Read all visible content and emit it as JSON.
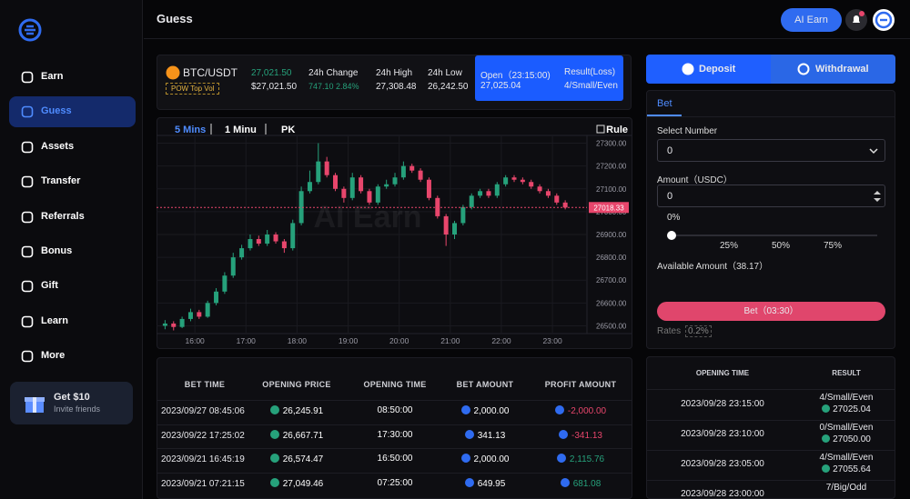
{
  "sidebar": {
    "menu": [
      "Earn",
      "Guess",
      "Assets",
      "Transfer",
      "Referrals",
      "Bonus",
      "Gift",
      "Learn",
      "More"
    ],
    "promo_title": "Get $10",
    "promo_subtitle": "Invite friends"
  },
  "header": {
    "title": "Guess",
    "button": "AI Earn"
  },
  "ticker": {
    "pair": "BTC/USDT",
    "tag": "POW Top Vol",
    "price": "27,021.50",
    "price_usd": "$27,021.50",
    "change_label": "24h Change",
    "change": "747.10 2.84%",
    "high_label": "24h High",
    "high": "27,308.48",
    "low_label": "24h Low",
    "low": "26,242.50",
    "open_label": "Open（23:15:00)",
    "open": "27,025.04",
    "result_label": "Result(Loss)",
    "result": "4/Small/Even"
  },
  "chart_data": {
    "type": "candlestick",
    "tabs": [
      "5 Mins",
      "1 Minu",
      "PK"
    ],
    "rule": "Rule",
    "watermark": "AI Earn",
    "candles": [
      [
        26500,
        26525,
        26485,
        26510
      ],
      [
        26510,
        26520,
        26480,
        26495
      ],
      [
        26495,
        26540,
        26490,
        26530
      ],
      [
        26530,
        26575,
        26520,
        26560
      ],
      [
        26560,
        26570,
        26530,
        26540
      ],
      [
        26540,
        26610,
        26535,
        26600
      ],
      [
        26600,
        26665,
        26590,
        26650
      ],
      [
        26650,
        26735,
        26640,
        26720
      ],
      [
        26720,
        26820,
        26710,
        26800
      ],
      [
        26800,
        26855,
        26790,
        26840
      ],
      [
        26840,
        26900,
        26830,
        26880
      ],
      [
        26880,
        26895,
        26850,
        26860
      ],
      [
        26860,
        26920,
        26850,
        26900
      ],
      [
        26900,
        26910,
        26860,
        26870
      ],
      [
        26870,
        26880,
        26820,
        26840
      ],
      [
        26840,
        26965,
        26830,
        26950
      ],
      [
        26950,
        27110,
        26940,
        27090
      ],
      [
        27090,
        27180,
        27080,
        27130
      ],
      [
        27130,
        27300,
        27120,
        27220
      ],
      [
        27220,
        27240,
        27150,
        27160
      ],
      [
        27160,
        27170,
        27090,
        27100
      ],
      [
        27100,
        27110,
        27040,
        27060
      ],
      [
        27060,
        27170,
        27050,
        27150
      ],
      [
        27150,
        27160,
        27080,
        27090
      ],
      [
        27090,
        27100,
        27030,
        27040
      ],
      [
        27040,
        27120,
        27030,
        27110
      ],
      [
        27110,
        27140,
        27100,
        27120
      ],
      [
        27120,
        27170,
        27110,
        27150
      ],
      [
        27150,
        27220,
        27140,
        27200
      ],
      [
        27200,
        27210,
        27170,
        27180
      ],
      [
        27180,
        27190,
        27130,
        27140
      ],
      [
        27140,
        27150,
        27050,
        27060
      ],
      [
        27060,
        27070,
        26970,
        26980
      ],
      [
        26980,
        26990,
        26850,
        26900
      ],
      [
        26900,
        26960,
        26880,
        26950
      ],
      [
        26950,
        27030,
        26940,
        27020
      ],
      [
        27020,
        27080,
        27010,
        27070
      ],
      [
        27070,
        27100,
        27060,
        27090
      ],
      [
        27090,
        27100,
        27060,
        27070
      ],
      [
        27070,
        27130,
        27060,
        27120
      ],
      [
        27120,
        27160,
        27110,
        27150
      ],
      [
        27150,
        27160,
        27130,
        27140
      ],
      [
        27140,
        27150,
        27120,
        27130
      ],
      [
        27130,
        27140,
        27100,
        27110
      ],
      [
        27110,
        27120,
        27080,
        27090
      ],
      [
        27090,
        27100,
        27060,
        27070
      ],
      [
        27070,
        27080,
        27030,
        27040
      ],
      [
        27040,
        27050,
        27010,
        27018
      ]
    ],
    "xlim": [
      -1.25,
      48
    ],
    "xticks": [
      {
        "value": 3.5,
        "label": "16:00"
      },
      {
        "value": 9.5,
        "label": "17:00"
      },
      {
        "value": 15.5,
        "label": "18:00"
      },
      {
        "value": 21.5,
        "label": "19:00"
      },
      {
        "value": 27.5,
        "label": "20:00"
      },
      {
        "value": 33.5,
        "label": "21:00"
      },
      {
        "value": 39.5,
        "label": "22:00"
      },
      {
        "value": 45.5,
        "label": "23:00"
      }
    ],
    "ylim": [
      26470,
      27330
    ],
    "yticks": [
      {
        "value": 26500,
        "label": "26500.00"
      },
      {
        "value": 26600,
        "label": "26600.00"
      },
      {
        "value": 26700,
        "label": "26700.00"
      },
      {
        "value": 26800,
        "label": "26800.00"
      },
      {
        "value": 26900,
        "label": "26900.00"
      },
      {
        "value": 27000,
        "label": "27000.00"
      },
      {
        "value": 27100,
        "label": "27100.00"
      },
      {
        "value": 27200,
        "label": "27200.00"
      },
      {
        "value": 27300,
        "label": "27300.00"
      }
    ],
    "price_line": {
      "value": 27018.33,
      "label": "27018.33"
    },
    "up_color": "#26a17b",
    "down_color": "#e8466c"
  },
  "bets_table": {
    "columns": [
      "BET TIME",
      "OPENING PRICE",
      "OPENING TIME",
      "BET AMOUNT",
      "PROFIT AMOUNT"
    ],
    "rows": [
      [
        "2023/09/27 08:45:06",
        "26,245.91",
        "08:50:00",
        "2,000.00",
        "-2,000.00"
      ],
      [
        "2023/09/22 17:25:02",
        "26,667.71",
        "17:30:00",
        "341.13",
        "-341.13"
      ],
      [
        "2023/09/21 16:45:19",
        "26,574.47",
        "16:50:00",
        "2,000.00",
        "2,115.76"
      ],
      [
        "2023/09/21 07:21:15",
        "27,049.46",
        "07:25:00",
        "649.95",
        "681.08"
      ]
    ]
  },
  "bet_form": {
    "deposit": "Deposit",
    "withdrawal": "Withdrawal",
    "tab": "Bet",
    "select_label": "Select Number",
    "select_value": "0",
    "amount_label": "Amount（USDC）",
    "amount_value": "0",
    "slider_value": "0%",
    "slider_marks": [
      "25%",
      "50%",
      "75%"
    ],
    "available": "Available Amount（38.17）",
    "bet_button": "Bet（03:30）",
    "rates_label": "Rates",
    "rates_value": "0.2%"
  },
  "results_table": {
    "columns": [
      "OPENING TIME",
      "RESULT"
    ],
    "rows": [
      [
        "2023/09/28 23:15:00",
        "4/Small/Even",
        "27025.04"
      ],
      [
        "2023/09/28 23:10:00",
        "0/Small/Even",
        "27050.00"
      ],
      [
        "2023/09/28 23:05:00",
        "4/Small/Even",
        "27055.64"
      ],
      [
        "2023/09/28 23:00:00",
        "7/Big/Odd"
      ]
    ]
  }
}
